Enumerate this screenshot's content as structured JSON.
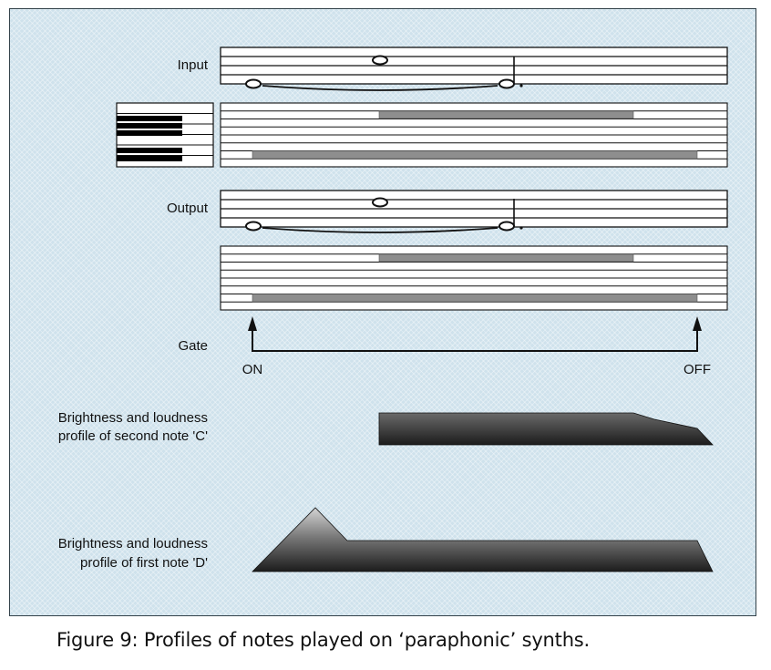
{
  "labels": {
    "input": "Input",
    "output": "Output",
    "gate": "Gate",
    "on": "ON",
    "off": "OFF",
    "second_profile_line1": "Brightness and loudness",
    "second_profile_line2": "profile of second note 'C'",
    "first_profile_line1": "Brightness and loudness",
    "first_profile_line2": "profile of first note 'D'"
  },
  "caption": "Figure 9: Profiles of notes played on ‘paraphonic’ synths.",
  "colors": {
    "panel_background": "#cfe2ec",
    "bar_grey": "#8e8e8e",
    "profile_dark": "#2a2a2a",
    "profile_light": "#bdbdbd"
  }
}
